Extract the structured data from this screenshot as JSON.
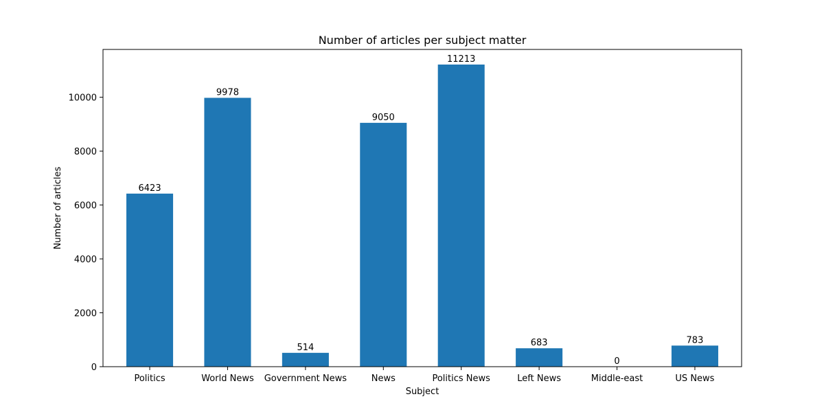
{
  "chart_data": {
    "type": "bar",
    "title": "Number of articles per subject matter",
    "xlabel": "Subject",
    "ylabel": "Number of articles",
    "categories": [
      "Politics",
      "World News",
      "Government News",
      "News",
      "Politics News",
      "Left News",
      "Middle-east",
      "US News"
    ],
    "values": [
      6423,
      9978,
      514,
      9050,
      11213,
      683,
      0,
      783
    ],
    "ylim": [
      0,
      11773.65
    ],
    "yticks": [
      0,
      2000,
      4000,
      6000,
      8000,
      10000
    ],
    "grid": false,
    "data_labels": true,
    "bar_color": "#1f77b4"
  }
}
